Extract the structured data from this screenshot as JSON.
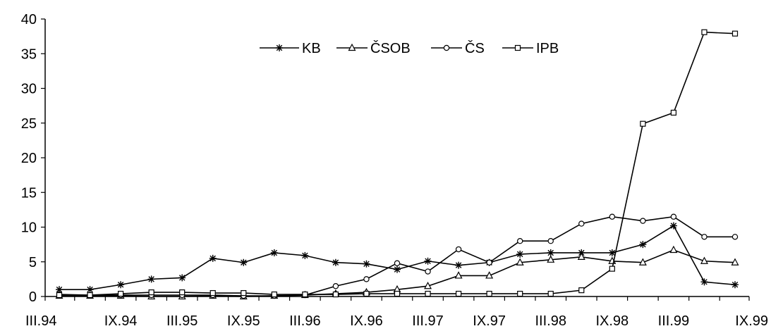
{
  "chart_data": {
    "type": "line",
    "title": "",
    "xlabel": "",
    "ylabel": "",
    "ylim": [
      0,
      40
    ],
    "yticks": [
      0,
      5,
      10,
      15,
      20,
      25,
      30,
      35,
      40
    ],
    "grid": false,
    "legend_position": "top-right",
    "x": [
      "III.94",
      "VI.94",
      "IX.94",
      "XII.94",
      "III.95",
      "VI.95",
      "IX.95",
      "XII.95",
      "III.96",
      "VI.96",
      "IX.96",
      "XII.96",
      "III.97",
      "VI.97",
      "IX.97",
      "XII.97",
      "III.98",
      "VI.98",
      "IX.98",
      "XII.98",
      "III.99",
      "VI.99",
      "IX.99"
    ],
    "x_tick_labels": [
      "III.94",
      "IX.94",
      "III.95",
      "IX.95",
      "III.96",
      "IX.96",
      "III.97",
      "IX.97",
      "III.98",
      "IX.98",
      "III.99",
      "IX.99"
    ],
    "series": [
      {
        "name": "KB",
        "marker": "asterisk",
        "values": [
          1.0,
          1.0,
          1.7,
          2.5,
          2.7,
          5.5,
          4.9,
          6.3,
          5.9,
          4.9,
          4.7,
          3.9,
          5.1,
          4.5,
          4.9,
          6.1,
          6.3,
          6.3,
          6.3,
          7.5,
          10.2,
          2.1,
          1.7
        ]
      },
      {
        "name": "ČSOB",
        "marker": "triangle",
        "values": [
          0.1,
          0.1,
          0.1,
          0.0,
          0.0,
          0.1,
          0.0,
          0.1,
          0.2,
          0.4,
          0.6,
          1.0,
          1.5,
          3.0,
          3.0,
          4.9,
          5.3,
          5.7,
          5.1,
          4.9,
          6.7,
          5.1,
          4.9
        ]
      },
      {
        "name": "ČS",
        "marker": "circle",
        "values": [
          0.3,
          0.2,
          0.2,
          0.2,
          0.2,
          0.2,
          0.1,
          0.1,
          0.2,
          1.5,
          2.5,
          4.8,
          3.6,
          6.8,
          4.9,
          8.0,
          8.0,
          10.5,
          11.5,
          10.9,
          11.5,
          8.6,
          8.6
        ]
      },
      {
        "name": "IPB",
        "marker": "square",
        "values": [
          0.2,
          0.2,
          0.4,
          0.6,
          0.6,
          0.5,
          0.5,
          0.3,
          0.3,
          0.3,
          0.4,
          0.4,
          0.4,
          0.4,
          0.4,
          0.4,
          0.4,
          0.9,
          4.0,
          24.9,
          26.5,
          38.1,
          37.9
        ]
      }
    ]
  }
}
